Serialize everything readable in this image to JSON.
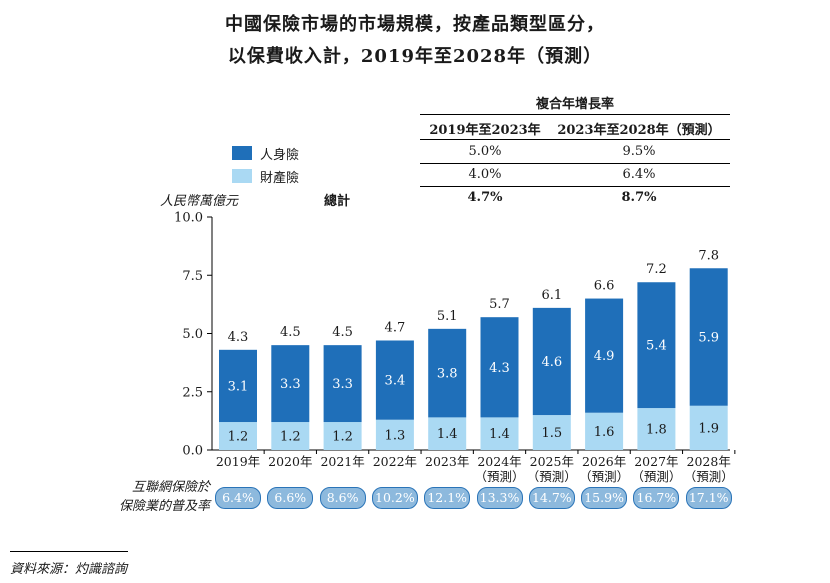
{
  "title_line1": "中國保險市場的市場規模，按產品類型區分，",
  "title_line2": "以保費收入計，2019年至2028年（預測）",
  "cagr": {
    "header": "複合年增長率",
    "col1": "2019年至2023年",
    "col2": "2023年至2028年（預測）",
    "rows": [
      {
        "label": "人身險",
        "v1": "5.0%",
        "v2": "9.5%"
      },
      {
        "label": "財產險",
        "v1": "4.0%",
        "v2": "6.4%"
      }
    ],
    "total_label": "總計",
    "total_v1": "4.7%",
    "total_v2": "8.7%"
  },
  "unit": "人民幣萬億元",
  "penetration": {
    "label_line1": "互聯網保險於",
    "label_line2": "保險業的普及率",
    "values": [
      "6.4%",
      "6.6%",
      "8.6%",
      "10.2%",
      "12.1%",
      "13.3%",
      "14.7%",
      "15.9%",
      "16.7%",
      "17.1%"
    ]
  },
  "source": "資料來源：灼識諮詢",
  "colors": {
    "life": "#1f6fb9",
    "property": "#aad9f3"
  },
  "chart_data": {
    "type": "bar",
    "stacked": true,
    "categories": [
      "2019年",
      "2020年",
      "2021年",
      "2022年",
      "2023年",
      "2024年",
      "2025年",
      "2026年",
      "2027年",
      "2028年"
    ],
    "category_sublabels": [
      "",
      "",
      "",
      "",
      "",
      "（預測）",
      "（預測）",
      "（預測）",
      "（預測）",
      "（預測）"
    ],
    "series": [
      {
        "name": "財產險",
        "values": [
          1.2,
          1.2,
          1.2,
          1.3,
          1.4,
          1.4,
          1.5,
          1.6,
          1.8,
          1.9
        ]
      },
      {
        "name": "人身險",
        "values": [
          3.1,
          3.3,
          3.3,
          3.4,
          3.8,
          4.3,
          4.6,
          4.9,
          5.4,
          5.9
        ]
      }
    ],
    "totals": [
      4.3,
      4.5,
      4.5,
      4.7,
      5.1,
      5.7,
      6.1,
      6.6,
      7.2,
      7.8
    ],
    "yticks": [
      "0.0",
      "2.5",
      "5.0",
      "7.5",
      "10.0"
    ],
    "ylim": [
      0,
      10
    ],
    "ylabel": "人民幣萬億元",
    "legend_position": "top-left"
  }
}
